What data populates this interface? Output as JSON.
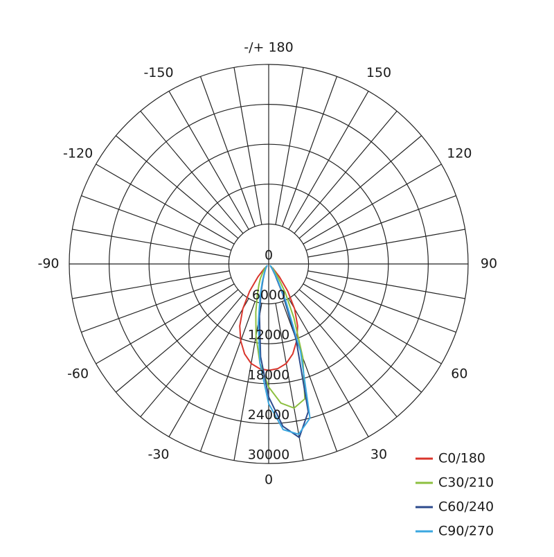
{
  "chart_data": {
    "type": "polar",
    "angles": [
      -45,
      -40,
      -35,
      -30,
      -25,
      -20,
      -15,
      -10,
      -5,
      0,
      5,
      10,
      15,
      20,
      25,
      30,
      35,
      40,
      45
    ],
    "angle_ticks": [
      -150,
      -120,
      -90,
      -60,
      -30,
      0,
      30,
      60,
      90,
      120,
      150,
      {
        "value": 180,
        "label": "-/+ 180"
      }
    ],
    "rlim": [
      0,
      30000
    ],
    "rticks": [
      0,
      6000,
      12000,
      18000,
      24000,
      30000
    ],
    "series": [
      {
        "name": "C0/180",
        "color": "#d9342b",
        "values": [
          800,
          2500,
          5000,
          7800,
          10300,
          12300,
          14000,
          15200,
          15800,
          16000,
          15800,
          15200,
          14000,
          12300,
          10300,
          7800,
          5000,
          2500,
          800
        ]
      },
      {
        "name": "C30/210",
        "color": "#8cbf3f",
        "values": [
          500,
          1000,
          1500,
          2500,
          3500,
          5000,
          7500,
          11000,
          15000,
          18500,
          21000,
          22000,
          21000,
          15000,
          9000,
          5000,
          2500,
          1200,
          500
        ]
      },
      {
        "name": "C60/240",
        "color": "#2c4a8c",
        "values": [
          300,
          500,
          700,
          1000,
          1500,
          2500,
          4500,
          8000,
          14000,
          20000,
          24500,
          26500,
          23000,
          12000,
          5000,
          2000,
          1000,
          500,
          300
        ]
      },
      {
        "name": "C90/270",
        "color": "#3aa7e0",
        "values": [
          300,
          500,
          700,
          1000,
          1600,
          2800,
          5000,
          9000,
          15000,
          21000,
          25000,
          26000,
          24000,
          14000,
          6000,
          2500,
          1200,
          600,
          300
        ]
      }
    ]
  }
}
